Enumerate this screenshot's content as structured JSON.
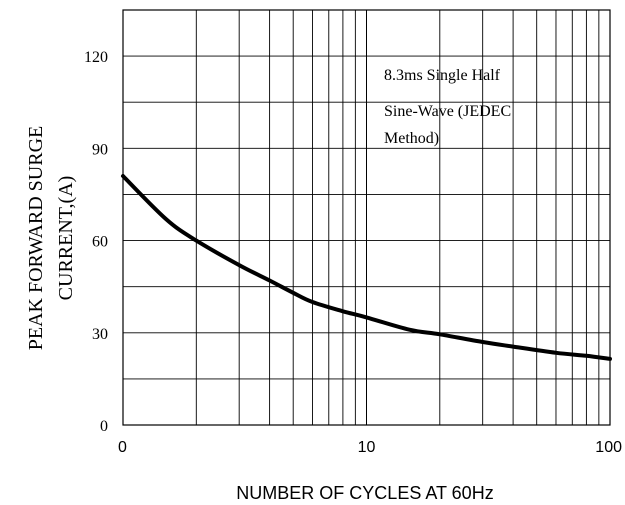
{
  "chart_data": {
    "type": "line",
    "title": "",
    "xlabel": "NUMBER OF CYCLES AT 60Hz",
    "ylabel_lines": [
      "PEAK FORWARD SURGE",
      "CURRENT,(A)"
    ],
    "x_scale": "log",
    "xlim": [
      1,
      100
    ],
    "ylim": [
      0,
      135
    ],
    "x_tick_labels": [
      {
        "value": 1,
        "label": "0"
      },
      {
        "value": 10,
        "label": "10"
      },
      {
        "value": 100,
        "label": "100"
      }
    ],
    "y_ticks": [
      0,
      30,
      60,
      90,
      120
    ],
    "grid": true,
    "annotation_lines": [
      "8.3ms Single Half",
      "Sine-Wave (JEDEC",
      "Method)"
    ],
    "series": [
      {
        "x": [
          1,
          1.5,
          2,
          3,
          4,
          5,
          6,
          8,
          10,
          15,
          20,
          30,
          40,
          60,
          80,
          100
        ],
        "y": [
          81,
          67,
          60,
          52,
          47,
          43,
          40,
          37,
          35,
          31,
          29.5,
          27,
          25.5,
          23.5,
          22.5,
          21.5
        ]
      }
    ]
  }
}
